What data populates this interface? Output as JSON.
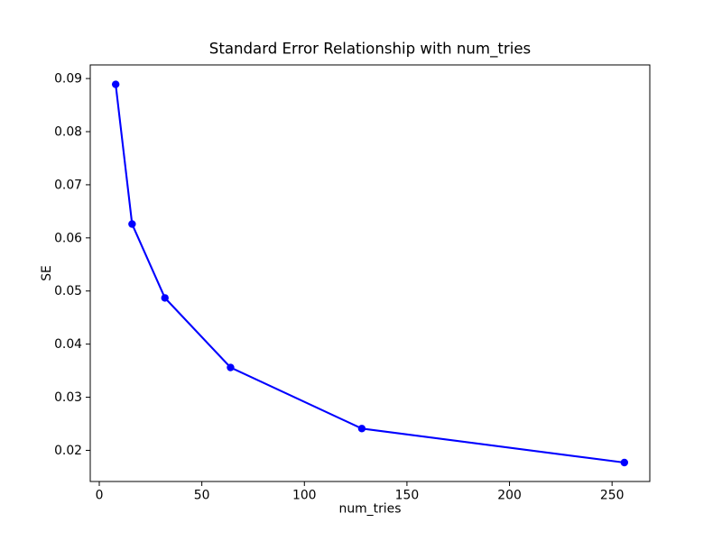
{
  "figure": {
    "background": "#ffffff",
    "axes_color": "#000000"
  },
  "chart_data": {
    "type": "line",
    "title": "Standard Error Relationship with num_tries",
    "xlabel": "num_tries",
    "ylabel": "SE",
    "x": [
      8,
      16,
      32,
      64,
      128,
      256
    ],
    "y": [
      0.0889,
      0.0626,
      0.0487,
      0.0356,
      0.0241,
      0.0177
    ],
    "series": [
      {
        "name": "SE",
        "x": [
          8,
          16,
          32,
          64,
          128,
          256
        ],
        "values": [
          0.0889,
          0.0626,
          0.0487,
          0.0356,
          0.0241,
          0.0177
        ]
      }
    ],
    "xlim": [
      -4.4,
      268.4
    ],
    "ylim": [
      0.014135,
      0.092565
    ],
    "x_ticks": [
      0,
      50,
      100,
      150,
      200,
      250
    ],
    "x_tick_labels": [
      "0",
      "50",
      "100",
      "150",
      "200",
      "250"
    ],
    "y_ticks": [
      0.02,
      0.03,
      0.04,
      0.05,
      0.06,
      0.07,
      0.08,
      0.09
    ],
    "y_tick_labels": [
      "0.02",
      "0.03",
      "0.04",
      "0.05",
      "0.06",
      "0.07",
      "0.08",
      "0.09"
    ],
    "line_color": "#0000ff",
    "marker": "o",
    "marker_color": "#0000ff",
    "grid": false,
    "legend_position": "none"
  }
}
